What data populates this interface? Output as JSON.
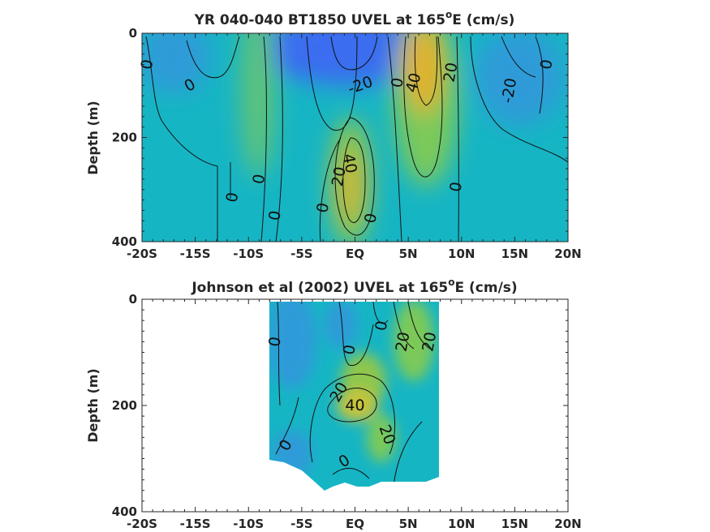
{
  "chart_data": [
    {
      "type": "heatmap",
      "title_main": "YR 040-040 BT1850 UVEL at 165",
      "title_sup": "o",
      "title_unit": "E (cm/s)",
      "ylabel": "Depth (m)",
      "xlabel": "",
      "xlim": [
        -20,
        20
      ],
      "ylim": [
        0,
        400
      ],
      "y_reversed": true,
      "x_ticks": [
        -20,
        -15,
        -10,
        -5,
        0,
        5,
        10,
        15,
        20
      ],
      "x_tick_labels": [
        "-20S",
        "-15S",
        "-10S",
        "-5S",
        "EQ",
        "5N",
        "10N",
        "15N",
        "20N"
      ],
      "y_ticks": [
        0,
        200,
        400
      ],
      "y_tick_labels": [
        "0",
        "200",
        "400"
      ],
      "colors": {
        "min": "#3a6df0",
        "low": "#2f9bd8",
        "mid": "#16b5c4",
        "high": "#7cc95a",
        "max": "#e2b12a"
      },
      "contour_labels": [
        {
          "x": -19.5,
          "y": 60,
          "text": "0",
          "rot": -80
        },
        {
          "x": -15.5,
          "y": 100,
          "text": "0",
          "rot": -30
        },
        {
          "x": -9,
          "y": 280,
          "text": "0",
          "rot": -80
        },
        {
          "x": -11.5,
          "y": 315,
          "text": "0",
          "rot": -80
        },
        {
          "x": -7.5,
          "y": 350,
          "text": "0",
          "rot": -80
        },
        {
          "x": -3,
          "y": 335,
          "text": "0",
          "rot": -80
        },
        {
          "x": 1.5,
          "y": 355,
          "text": "0",
          "rot": -80
        },
        {
          "x": 0.5,
          "y": 100,
          "text": "-20",
          "rot": -20
        },
        {
          "x": 4,
          "y": 95,
          "text": "0",
          "rot": -80
        },
        {
          "x": 5.5,
          "y": 95,
          "text": "40",
          "rot": -75
        },
        {
          "x": 9,
          "y": 75,
          "text": "20",
          "rot": -80
        },
        {
          "x": 14.5,
          "y": 110,
          "text": "-20",
          "rot": -80
        },
        {
          "x": 18,
          "y": 60,
          "text": "0",
          "rot": -80
        },
        {
          "x": 9.5,
          "y": 295,
          "text": "0",
          "rot": -80
        },
        {
          "x": -1.5,
          "y": 275,
          "text": "20",
          "rot": -80
        },
        {
          "x": -0.5,
          "y": 250,
          "text": "40",
          "rot": 80
        }
      ]
    },
    {
      "type": "heatmap",
      "title_main": "Johnson et al (2002) UVEL at 165",
      "title_sup": "o",
      "title_unit": "E (cm/s)",
      "ylabel": "Depth (m)",
      "xlabel": "",
      "xlim": [
        -20,
        20
      ],
      "ylim": [
        0,
        400
      ],
      "y_reversed": true,
      "x_ticks": [
        -20,
        -15,
        -10,
        -5,
        0,
        5,
        10,
        15,
        20
      ],
      "x_tick_labels": [
        "-20S",
        "-15S",
        "-10S",
        "-5S",
        "EQ",
        "5N",
        "10N",
        "15N",
        "20N"
      ],
      "y_ticks": [
        0,
        200,
        400
      ],
      "y_tick_labels": [
        "0",
        "200",
        "400"
      ],
      "data_extent": {
        "x": [
          -8,
          8
        ],
        "y": [
          0,
          330
        ]
      },
      "colors": {
        "low": "#2f9bd8",
        "mid": "#16b5c4",
        "high": "#7cc95a",
        "max": "#c8c43a"
      },
      "contour_labels": [
        {
          "x": -7.5,
          "y": 80,
          "text": "0",
          "rot": -80
        },
        {
          "x": -0.5,
          "y": 95,
          "text": "0",
          "rot": -80
        },
        {
          "x": 2.5,
          "y": 50,
          "text": "0",
          "rot": -80
        },
        {
          "x": 4.5,
          "y": 80,
          "text": "20",
          "rot": -80
        },
        {
          "x": 7,
          "y": 80,
          "text": "20",
          "rot": -80
        },
        {
          "x": -1.5,
          "y": 175,
          "text": "20",
          "rot": -60
        },
        {
          "x": 0,
          "y": 200,
          "text": "40",
          "rot": 0
        },
        {
          "x": 3,
          "y": 255,
          "text": "20",
          "rot": 70
        },
        {
          "x": -6.5,
          "y": 275,
          "text": "0",
          "rot": -60
        },
        {
          "x": -1,
          "y": 305,
          "text": "0",
          "rot": -30
        }
      ]
    }
  ]
}
